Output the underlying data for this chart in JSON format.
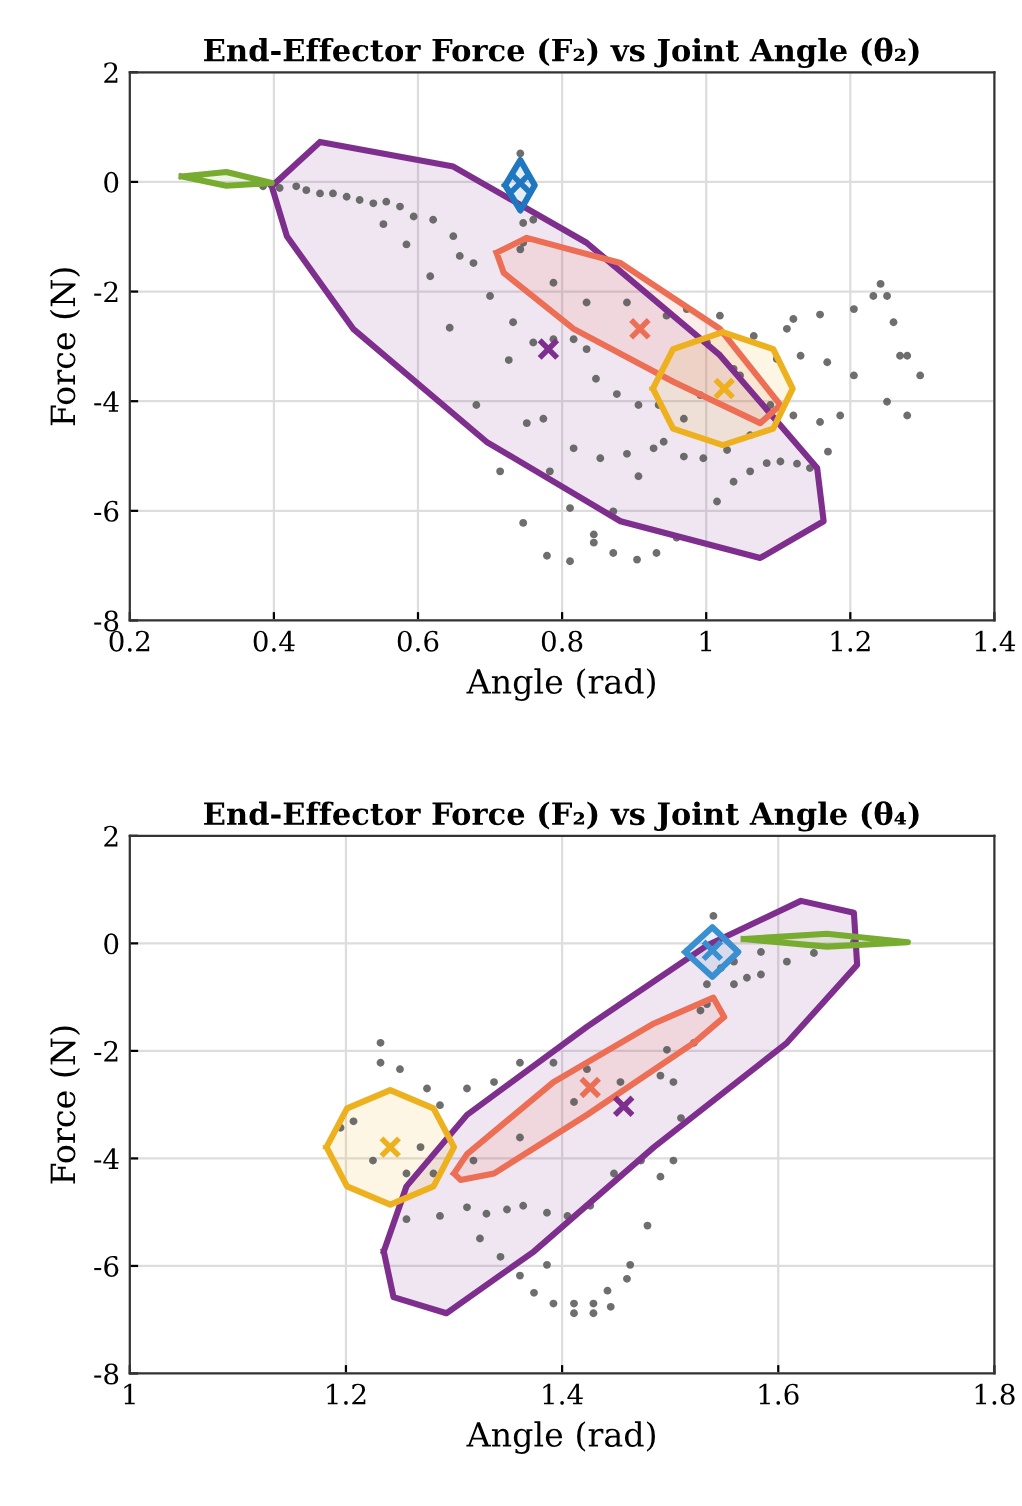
{
  "chart_data": [
    {
      "type": "scatter",
      "title": "End-Effector Force (F₂) vs Joint Angle (θ₂)",
      "xlabel": "Angle (rad)",
      "ylabel": "Force (N)",
      "xlim": [
        0.2,
        1.4
      ],
      "xticks": [
        0.2,
        0.4,
        0.6,
        0.8,
        1,
        1.2,
        1.4
      ],
      "ylim": [
        -8,
        2
      ],
      "yticks": [
        -8,
        -6,
        -4,
        -2,
        0,
        2
      ],
      "grid": true,
      "series": [
        {
          "type": "area",
          "color": "#7e2f8e",
          "x": [
            0.397,
            0.464,
            0.649,
            0.834,
            1.019,
            1.154,
            1.163,
            1.075,
            0.881,
            0.695,
            0.51,
            0.418
          ],
          "values": [
            -0.08,
            0.73,
            0.28,
            -1.11,
            -3.16,
            -5.22,
            -6.19,
            -6.86,
            -6.19,
            -4.74,
            -2.68,
            -0.99
          ]
        },
        {
          "color": "#555555",
          "marker": "circle",
          "x": [
            0.385,
            0.408,
            0.431,
            0.445,
            0.464,
            0.482,
            0.501,
            0.519,
            0.538,
            0.556,
            0.575,
            0.594,
            0.621,
            0.649,
            0.658,
            0.677,
            0.7,
            0.732,
            0.76,
            0.788,
            0.816,
            0.834,
            0.552,
            0.584,
            0.617,
            0.644,
            0.681,
            0.726,
            0.751,
            0.774,
            0.714,
            0.783,
            0.746,
            0.779,
            0.811,
            0.844,
            0.844,
            0.871,
            0.904,
            0.931,
            0.811,
            0.871,
            0.853,
            0.89,
            0.927,
            0.941,
            0.969,
            0.996,
            1.029,
            1.061,
            1.038,
            1.061,
            1.084,
            1.103,
            1.126,
            1.144,
            1.169,
            1.015,
            0.959,
            0.906,
            0.816,
            0.847,
            0.876,
            0.906,
            0.934,
            0.969,
            0.992,
            1.038,
            1.098,
            0.742,
            0.788,
            0.834,
            0.89,
            0.945,
            1.001,
            1.047,
            1.089,
            0.973,
            1.019,
            1.066,
            1.112,
            1.131,
            1.121,
            1.158,
            1.121,
            1.158,
            1.205,
            1.232,
            1.242,
            1.251,
            1.26,
            1.279,
            1.168,
            1.205,
            1.251,
            1.279,
            1.186,
            1.297,
            1.269,
            0.742,
            0.746,
            0.76,
            0.746
          ],
          "values": [
            -0.08,
            -0.11,
            -0.08,
            -0.15,
            -0.21,
            -0.21,
            -0.27,
            -0.33,
            -0.39,
            -0.36,
            -0.45,
            -0.63,
            -0.69,
            -0.99,
            -1.35,
            -1.48,
            -2.08,
            -2.56,
            -2.93,
            -2.87,
            -2.87,
            -3.05,
            -0.77,
            -1.14,
            -1.72,
            -2.66,
            -4.07,
            -3.25,
            -4.4,
            -4.32,
            -5.28,
            -5.28,
            -6.22,
            -6.82,
            -6.92,
            -6.58,
            -6.43,
            -6.77,
            -6.89,
            -6.77,
            -5.95,
            -6.01,
            -5.04,
            -4.96,
            -4.86,
            -4.74,
            -5.01,
            -5.04,
            -4.89,
            -4.62,
            -5.47,
            -5.28,
            -5.13,
            -5.1,
            -5.14,
            -5.22,
            -4.92,
            -5.83,
            -6.49,
            -5.37,
            -4.86,
            -3.59,
            -3.87,
            -4.07,
            -4.07,
            -4.32,
            -3.89,
            -3.41,
            -3.23,
            -1.23,
            -1.84,
            -2.2,
            -2.2,
            -2.44,
            -2.93,
            -3.53,
            -4.07,
            -2.32,
            -2.44,
            -2.81,
            -2.68,
            -3.17,
            -4.26,
            -4.38,
            -2.5,
            -2.42,
            -2.32,
            -2.08,
            -1.86,
            -2.08,
            -2.56,
            -3.17,
            -3.29,
            -3.53,
            -4.01,
            -4.26,
            -4.26,
            -3.53,
            -3.17,
            0.52,
            -0.75,
            -0.69,
            -1.11
          ]
        },
        {
          "type": "area",
          "color": "#ec6f55",
          "x": [
            0.709,
            0.751,
            0.881,
            1.019,
            1.103,
            1.075,
            0.955,
            0.816,
            0.719
          ],
          "values": [
            -1.29,
            -1.02,
            -1.48,
            -2.68,
            -4.07,
            -4.4,
            -3.65,
            -2.68,
            -1.66
          ]
        },
        {
          "type": "area",
          "color": "#edb120",
          "x": [
            0.926,
            0.954,
            1.023,
            1.093,
            1.12,
            1.093,
            1.023,
            0.954
          ],
          "values": [
            -3.77,
            -3.05,
            -2.74,
            -3.05,
            -3.77,
            -4.5,
            -4.8,
            -4.5
          ]
        },
        {
          "type": "area",
          "color": "#1f77c0",
          "x": [
            0.721,
            0.742,
            0.762,
            0.742
          ],
          "values": [
            -0.06,
            0.4,
            -0.06,
            -0.52
          ]
        },
        {
          "type": "area",
          "color": "#77ac30",
          "x": [
            0.272,
            0.334,
            0.397,
            0.334
          ],
          "values": [
            0.1,
            0.18,
            -0.02,
            -0.07
          ]
        },
        {
          "type": "scatter",
          "marker": "cross",
          "colors": [
            "#ec6f55",
            "#7e2f8e",
            "#edb120",
            "#1f77c0"
          ],
          "x": [
            0.908,
            0.781,
            1.025,
            0.742
          ],
          "values": [
            -2.68,
            -3.05,
            -3.77,
            -0.02
          ]
        }
      ]
    },
    {
      "type": "scatter",
      "title": "End-Effector Force (F₂) vs Joint Angle (θ₄)",
      "xlabel": "Angle (rad)",
      "ylabel": "Force (N)",
      "xlim": [
        1,
        1.8
      ],
      "xticks": [
        1,
        1.2,
        1.4,
        1.6,
        1.8
      ],
      "ylim": [
        -8,
        2
      ],
      "yticks": [
        -8,
        -6,
        -4,
        -2,
        0,
        2
      ],
      "grid": true,
      "series": [
        {
          "type": "area",
          "color": "#7e2f8e",
          "x": [
            1.235,
            1.256,
            1.312,
            1.423,
            1.534,
            1.621,
            1.67,
            1.673,
            1.608,
            1.485,
            1.374,
            1.293,
            1.244
          ],
          "values": [
            -5.73,
            -4.52,
            -3.19,
            -1.55,
            -0.04,
            0.79,
            0.57,
            -0.4,
            -1.85,
            -3.79,
            -5.73,
            -6.88,
            -6.58
          ]
        },
        {
          "color": "#555555",
          "marker": "circle",
          "x": [
            1.232,
            1.232,
            1.25,
            1.275,
            1.287,
            1.312,
            1.337,
            1.361,
            1.392,
            1.423,
            1.256,
            1.287,
            1.312,
            1.33,
            1.349,
            1.364,
            1.386,
            1.405,
            1.426,
            1.448,
            1.473,
            1.491,
            1.503,
            1.51,
            1.491,
            1.503,
            1.522,
            1.534,
            1.534,
            1.547,
            1.559,
            1.571,
            1.584,
            1.608,
            1.633,
            1.67,
            1.559,
            1.584,
            1.324,
            1.343,
            1.361,
            1.386,
            1.374,
            1.392,
            1.411,
            1.429,
            1.445,
            1.411,
            1.429,
            1.442,
            1.46,
            1.463,
            1.479,
            1.318,
            1.361,
            1.411,
            1.454,
            1.497,
            1.528,
            1.207,
            1.225,
            1.256,
            1.269,
            1.281,
            1.195,
            1.54
          ],
          "values": [
            -1.85,
            -2.22,
            -2.34,
            -2.7,
            -3.01,
            -2.7,
            -2.58,
            -2.22,
            -2.22,
            -2.34,
            -5.13,
            -5.07,
            -4.91,
            -5.03,
            -4.95,
            -4.88,
            -5.01,
            -5.07,
            -4.88,
            -4.28,
            -4.04,
            -4.34,
            -4.04,
            -3.25,
            -2.46,
            -2.58,
            -1.85,
            -1.13,
            -0.76,
            -0.46,
            -0.76,
            -0.64,
            -0.58,
            -0.34,
            -0.18,
            0.02,
            -0.34,
            -0.16,
            -5.49,
            -5.83,
            -6.18,
            -5.98,
            -6.5,
            -6.7,
            -6.7,
            -6.7,
            -6.76,
            -6.88,
            -6.88,
            -6.46,
            -6.24,
            -5.98,
            -5.25,
            -4.04,
            -3.61,
            -2.95,
            -2.58,
            -1.98,
            -1.25,
            -3.31,
            -4.04,
            -4.28,
            -3.79,
            -4.28,
            -3.43,
            0.51
          ]
        },
        {
          "type": "area",
          "color": "#ec6f55",
          "x": [
            1.3,
            1.312,
            1.392,
            1.485,
            1.54,
            1.55,
            1.522,
            1.423,
            1.337,
            1.306
          ],
          "values": [
            -4.28,
            -3.92,
            -2.58,
            -1.49,
            -1.01,
            -1.37,
            -1.85,
            -3.19,
            -4.28,
            -4.4
          ]
        },
        {
          "type": "area",
          "color": "#edb120",
          "x": [
            1.182,
            1.201,
            1.241,
            1.281,
            1.3,
            1.281,
            1.241,
            1.201
          ],
          "values": [
            -3.79,
            -3.07,
            -2.73,
            -3.07,
            -3.79,
            -4.52,
            -4.86,
            -4.52
          ]
        },
        {
          "type": "area",
          "color": "#3a8fd0",
          "x": [
            1.514,
            1.539,
            1.563,
            1.539
          ],
          "values": [
            -0.16,
            0.3,
            -0.16,
            -0.62
          ]
        },
        {
          "type": "area",
          "color": "#77ac30",
          "x": [
            1.568,
            1.645,
            1.72,
            1.645
          ],
          "values": [
            0.08,
            0.18,
            0.02,
            -0.06
          ]
        },
        {
          "type": "scatter",
          "marker": "cross",
          "colors": [
            "#ec6f55",
            "#7e2f8e",
            "#edb120",
            "#3a8fd0"
          ],
          "x": [
            1.426,
            1.457,
            1.241,
            1.539
          ],
          "values": [
            -2.68,
            -3.03,
            -3.79,
            -0.13
          ]
        }
      ]
    }
  ]
}
